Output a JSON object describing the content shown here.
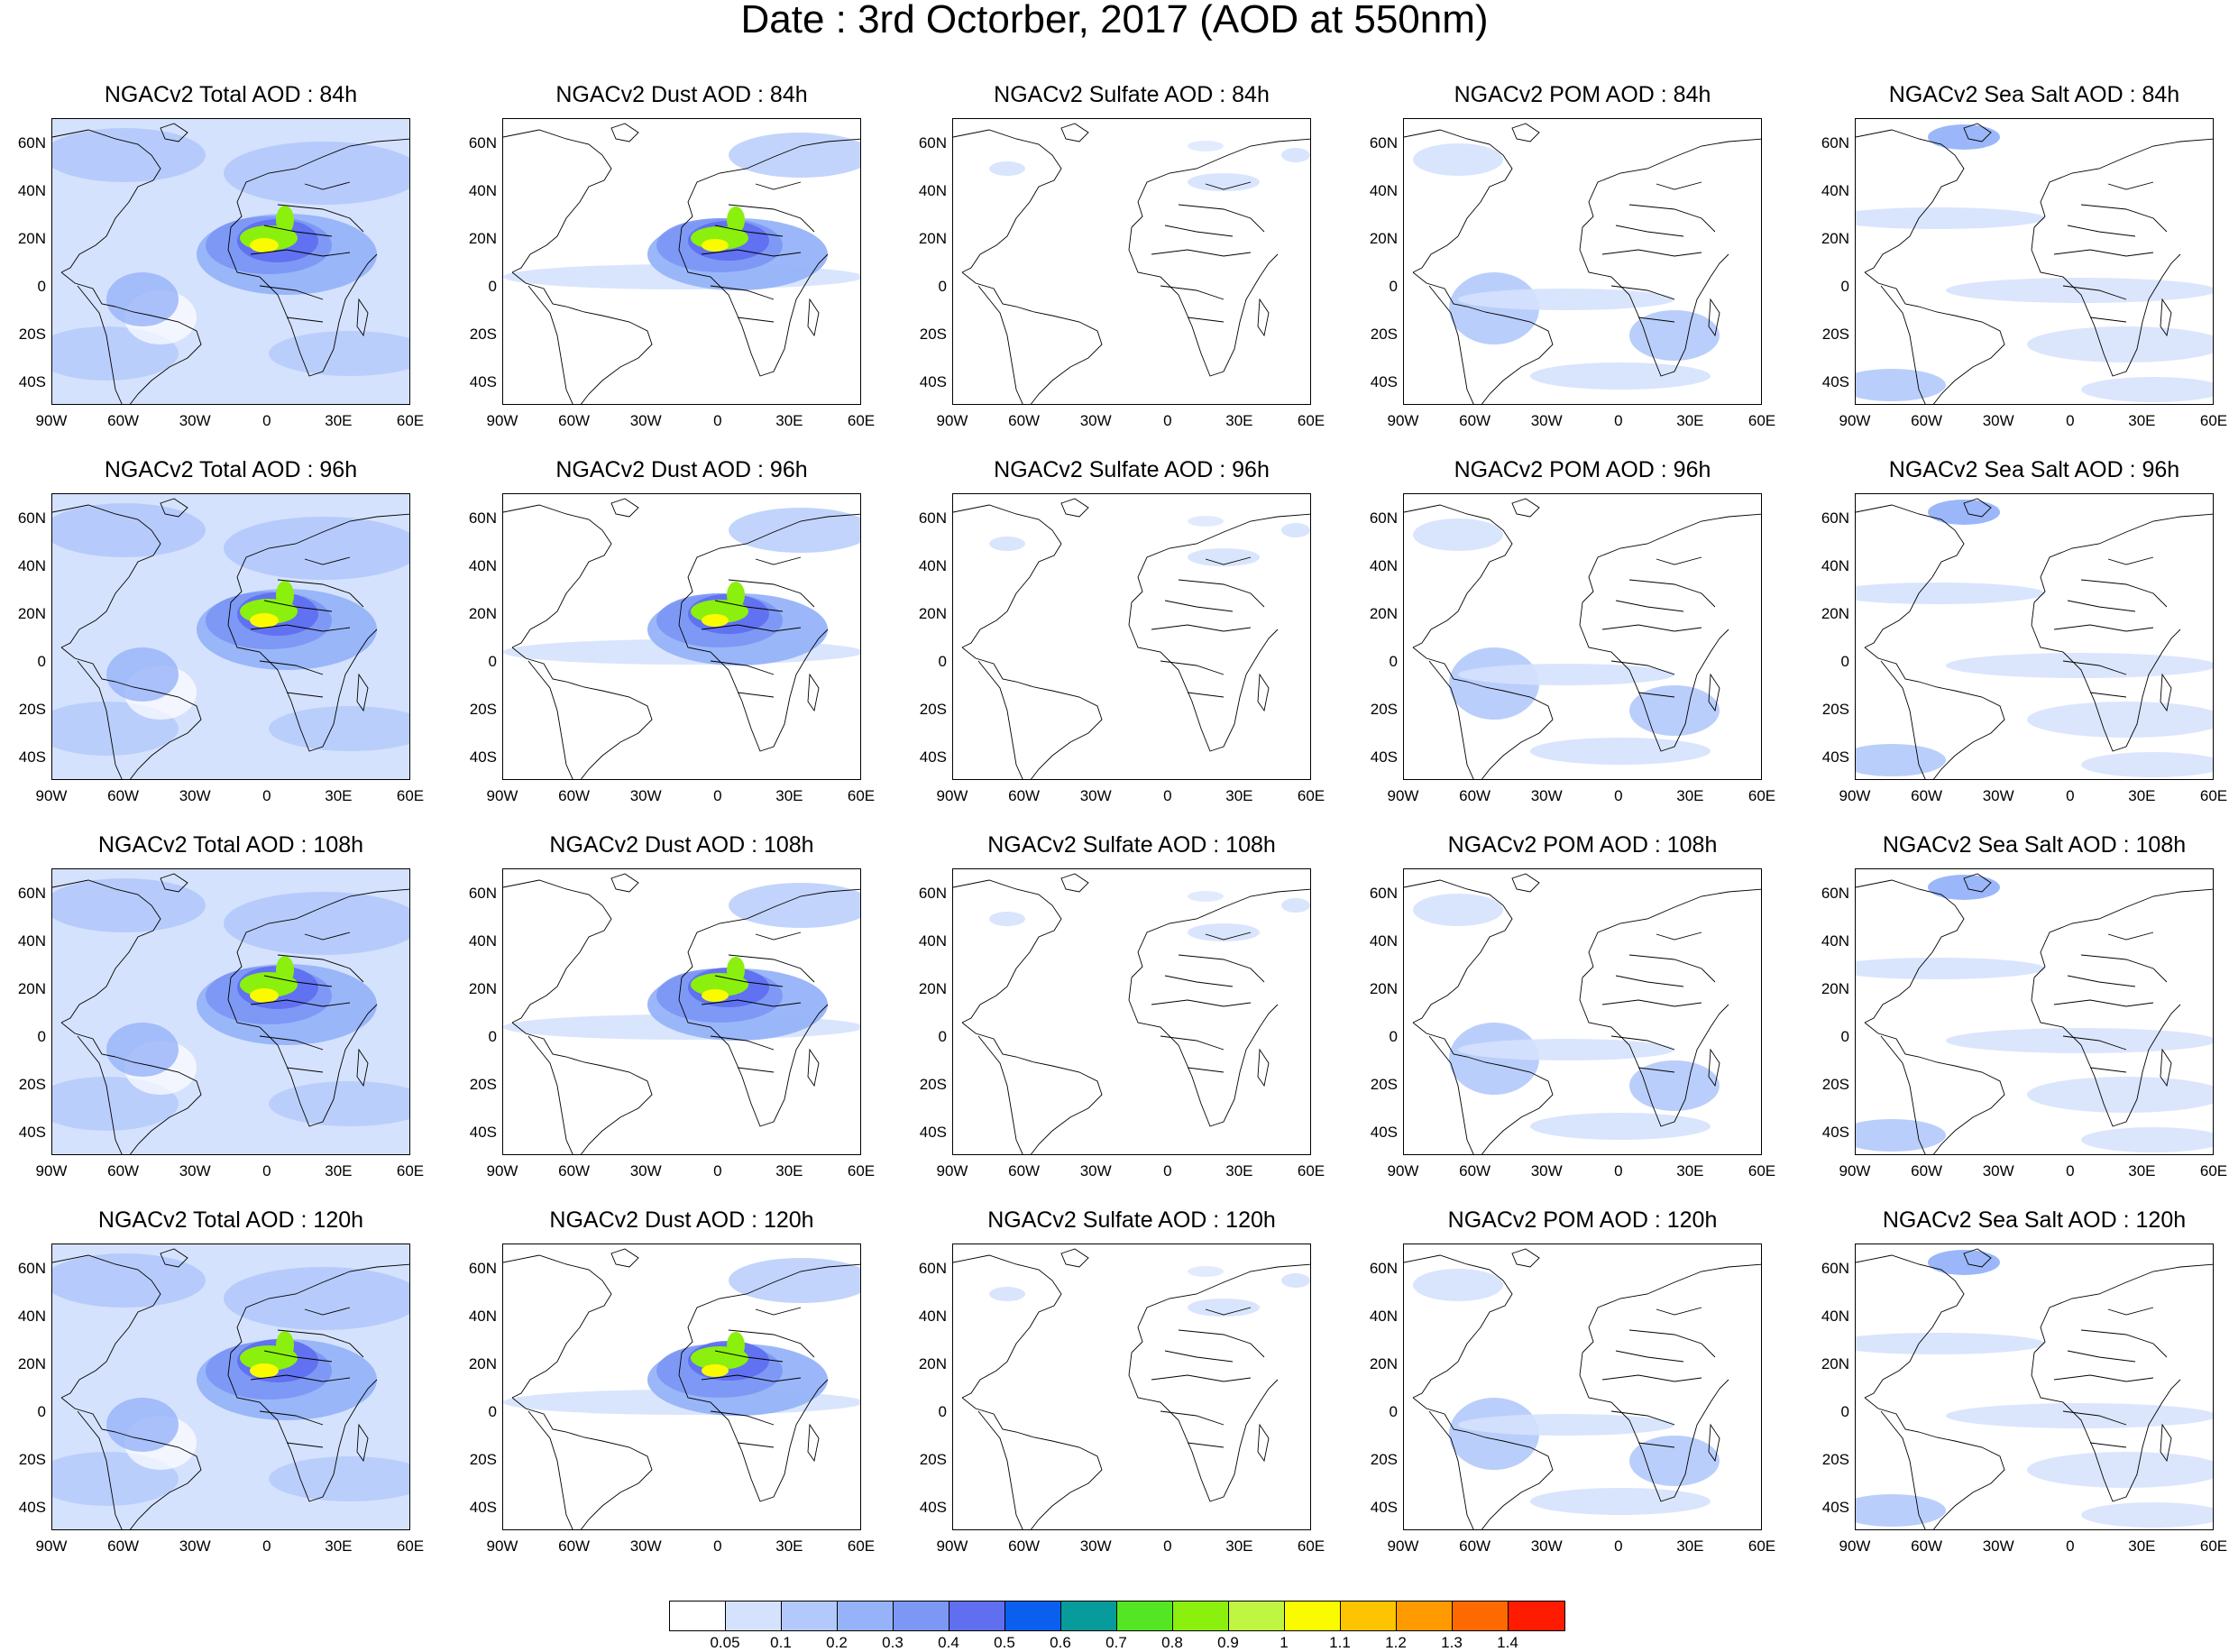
{
  "title": "Date : 3rd Octorber, 2017 (AOD at 550nm)",
  "lat_labels": [
    "60N",
    "40N",
    "20N",
    "0",
    "20S",
    "40S"
  ],
  "lon_labels": [
    "90W",
    "60W",
    "30W",
    "0",
    "30E",
    "60E"
  ],
  "rows": [
    {
      "hour": "84h",
      "titles": [
        "NGACv2 Total AOD : 84h",
        "NGACv2 Dust AOD : 84h",
        "NGACv2 Sulfate AOD : 84h",
        "NGACv2 POM AOD : 84h",
        "NGACv2 Sea Salt AOD : 84h"
      ]
    },
    {
      "hour": "96h",
      "titles": [
        "NGACv2 Total AOD : 96h",
        "NGACv2 Dust AOD : 96h",
        "NGACv2 Sulfate AOD : 96h",
        "NGACv2 POM AOD : 96h",
        "NGACv2 Sea Salt AOD : 96h"
      ]
    },
    {
      "hour": "108h",
      "titles": [
        "NGACv2 Total AOD : 108h",
        "NGACv2 Dust AOD : 108h",
        "NGACv2 Sulfate AOD : 108h",
        "NGACv2 POM AOD : 108h",
        "NGACv2 Sea Salt AOD : 108h"
      ]
    },
    {
      "hour": "120h",
      "titles": [
        "NGACv2 Total AOD : 120h",
        "NGACv2 Dust AOD : 120h",
        "NGACv2 Sulfate AOD : 120h",
        "NGACv2 POM AOD : 120h",
        "NGACv2 Sea Salt  AOD : 120h"
      ]
    }
  ],
  "colorbar": {
    "labels": [
      "0.05",
      "0.1",
      "0.2",
      "0.3",
      "0.4",
      "0.5",
      "0.6",
      "0.7",
      "0.8",
      "0.9",
      "1",
      "1.1",
      "1.2",
      "1.3",
      "1.4"
    ],
    "colors": [
      "#ffffff",
      "#d5e2fd",
      "#b3c9fb",
      "#96b3f9",
      "#7c97f4",
      "#5f6ff0",
      "#0a5fef",
      "#079b9b",
      "#55e623",
      "#8bf00d",
      "#c0f542",
      "#fbfb00",
      "#ffc400",
      "#ff9b00",
      "#ff6a00",
      "#ff1b00"
    ]
  }
}
